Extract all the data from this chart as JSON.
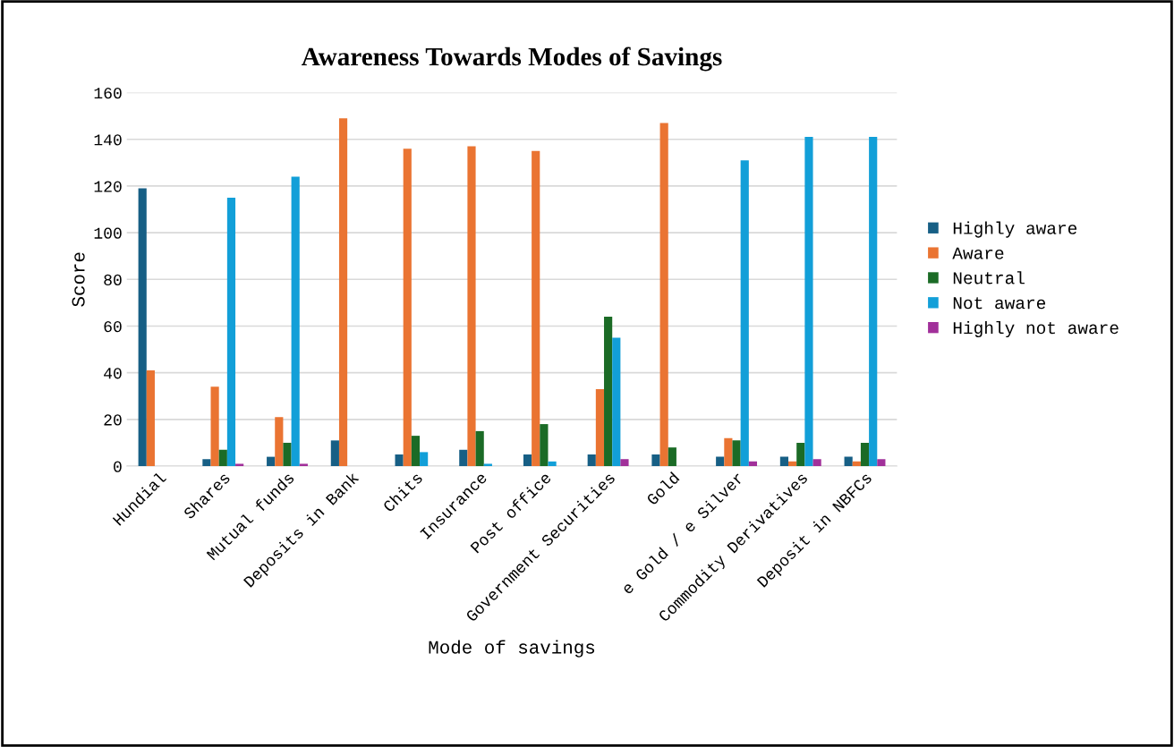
{
  "chart_data": {
    "type": "bar",
    "title": "Awareness Towards Modes of Savings",
    "xlabel": "Mode of savings",
    "ylabel": "Score",
    "categories": [
      "Hundial",
      "Shares",
      "Mutual funds",
      "Deposits in Bank",
      "Chits",
      "Insurance",
      "Post office",
      "Government Securities",
      "Gold",
      "e Gold / e Silver",
      "Commodity Derivatives",
      "Deposit in NBFCs"
    ],
    "series": [
      {
        "name": "Highly aware",
        "color": "#175f85",
        "values": [
          119,
          3,
          4,
          11,
          5,
          7,
          5,
          5,
          5,
          4,
          4,
          4
        ]
      },
      {
        "name": "Aware",
        "color": "#ea7432",
        "values": [
          41,
          34,
          21,
          149,
          136,
          137,
          135,
          33,
          147,
          12,
          2,
          2
        ]
      },
      {
        "name": "Neutral",
        "color": "#1b6b26",
        "values": [
          0,
          7,
          10,
          0,
          13,
          15,
          18,
          64,
          8,
          11,
          10,
          10
        ]
      },
      {
        "name": "Not aware",
        "color": "#129fd8",
        "values": [
          0,
          115,
          124,
          0,
          6,
          1,
          2,
          55,
          0,
          131,
          141,
          141
        ]
      },
      {
        "name": "Highly not aware",
        "color": "#a1309a",
        "values": [
          0,
          1,
          1,
          0,
          0,
          0,
          0,
          3,
          0,
          2,
          3,
          3
        ]
      }
    ],
    "ylim": [
      0,
      160
    ],
    "yticks": [
      0,
      20,
      40,
      60,
      80,
      100,
      120,
      140,
      160
    ],
    "grid": "y",
    "legend": "right"
  }
}
